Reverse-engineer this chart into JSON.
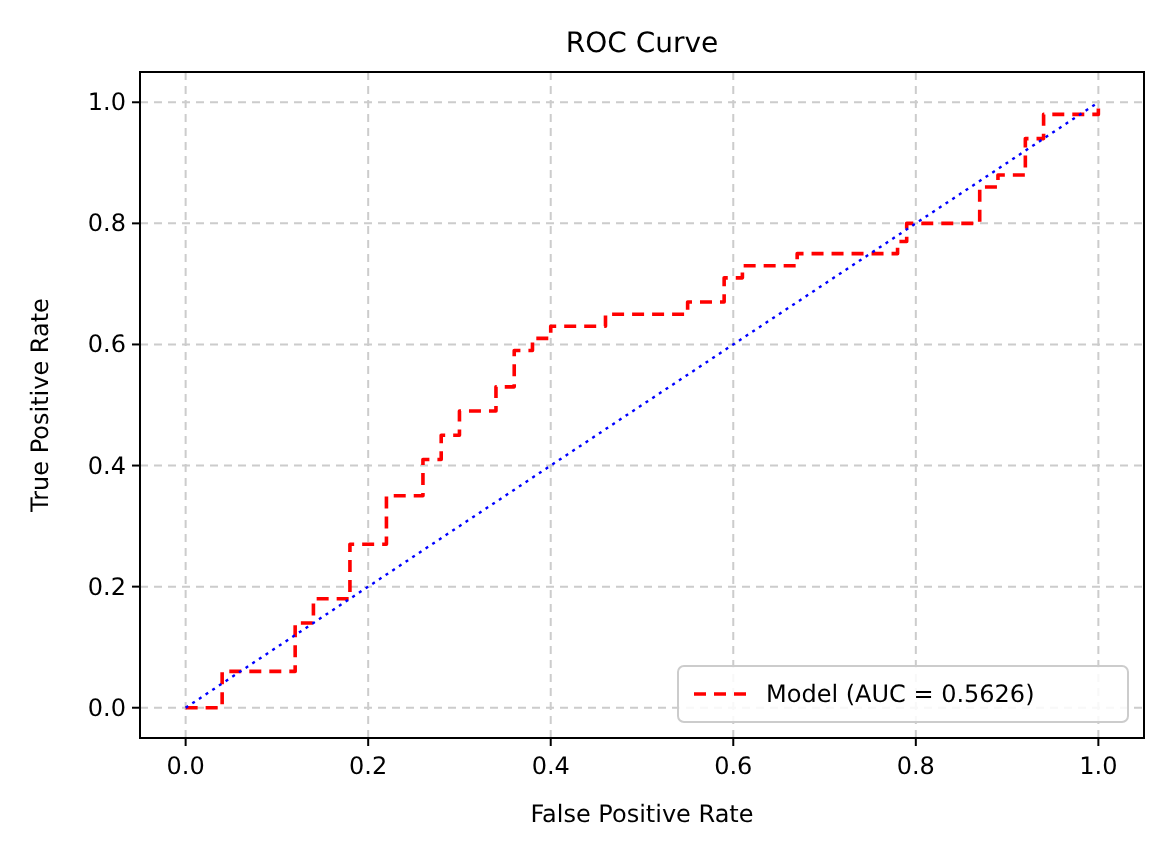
{
  "chart_data": {
    "type": "line",
    "title": "ROC Curve",
    "xlabel": "False Positive Rate",
    "ylabel": "True Positive Rate",
    "xlim": [
      -0.05,
      1.05
    ],
    "ylim": [
      -0.05,
      1.05
    ],
    "xticks": [
      {
        "value": 0,
        "label": "0.0"
      },
      {
        "value": 0.2,
        "label": "0.2"
      },
      {
        "value": 0.4,
        "label": "0.4"
      },
      {
        "value": 0.6,
        "label": "0.6"
      },
      {
        "value": 0.8,
        "label": "0.8"
      },
      {
        "value": 1,
        "label": "1.0"
      }
    ],
    "yticks": [
      {
        "value": 0,
        "label": "0.0"
      },
      {
        "value": 0.2,
        "label": "0.2"
      },
      {
        "value": 0.4,
        "label": "0.4"
      },
      {
        "value": 0.6,
        "label": "0.6"
      },
      {
        "value": 0.8,
        "label": "0.8"
      },
      {
        "value": 1,
        "label": "1.0"
      }
    ],
    "grid": true,
    "legend": "bottom right",
    "series": [
      {
        "name": "Model (AUC = 0.5626)",
        "color": "#ff0000",
        "line_style": "dashed",
        "x": [
          0,
          0.04,
          0.04,
          0.12,
          0.12,
          0.14,
          0.14,
          0.18,
          0.18,
          0.22,
          0.22,
          0.26,
          0.26,
          0.28,
          0.28,
          0.3,
          0.3,
          0.34,
          0.34,
          0.36,
          0.36,
          0.38,
          0.38,
          0.4,
          0.4,
          0.46,
          0.46,
          0.55,
          0.55,
          0.59,
          0.59,
          0.61,
          0.61,
          0.67,
          0.67,
          0.78,
          0.78,
          0.79,
          0.79,
          0.87,
          0.87,
          0.89,
          0.89,
          0.92,
          0.92,
          0.94,
          0.94,
          1,
          1
        ],
        "values": [
          0,
          0,
          0.06,
          0.06,
          0.14,
          0.14,
          0.18,
          0.18,
          0.27,
          0.27,
          0.35,
          0.35,
          0.41,
          0.41,
          0.45,
          0.45,
          0.49,
          0.49,
          0.53,
          0.53,
          0.59,
          0.59,
          0.61,
          0.61,
          0.63,
          0.63,
          0.65,
          0.65,
          0.67,
          0.67,
          0.71,
          0.71,
          0.73,
          0.73,
          0.75,
          0.75,
          0.77,
          0.77,
          0.8,
          0.8,
          0.86,
          0.86,
          0.88,
          0.88,
          0.94,
          0.94,
          0.98,
          0.98,
          1
        ]
      },
      {
        "color": "#0000ff",
        "line_style": "dotted",
        "x": [
          0,
          1
        ],
        "values": [
          0,
          1
        ]
      }
    ]
  }
}
